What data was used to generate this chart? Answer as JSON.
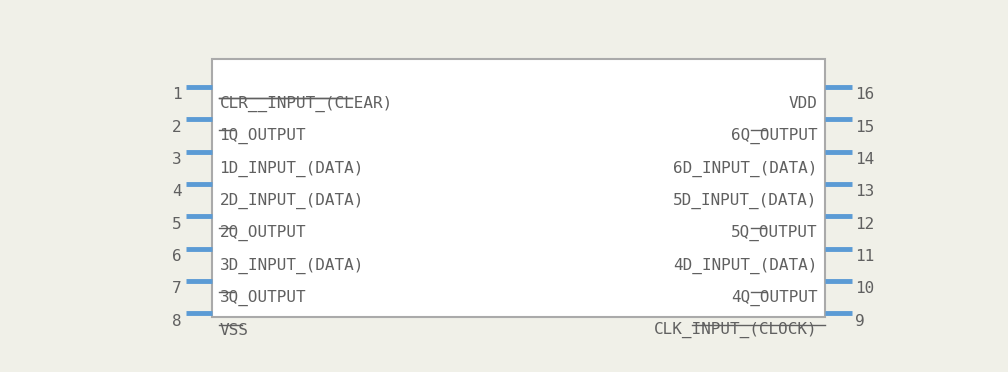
{
  "bg_color": "#f0f0e8",
  "box_edge_color": "#aaaaaa",
  "pin_color": "#5b9bd5",
  "text_color": "#606060",
  "number_color": "#606060",
  "overline_color": "#606060",
  "left_labels": [
    "CLR__INPUT_(CLEAR)",
    "1Q_OUTPUT",
    "1D_INPUT_(DATA)",
    "2D_INPUT_(DATA)",
    "2Q_OUTPUT",
    "3D_INPUT_(DATA)",
    "3Q_OUTPUT",
    "VSS"
  ],
  "right_labels": [
    "VDD",
    "6Q_OUTPUT",
    "6D_INPUT_(DATA)",
    "5D_INPUT_(DATA)",
    "5Q_OUTPUT",
    "4D_INPUT_(DATA)",
    "4Q_OUTPUT",
    "CLK_INPUT_(CLOCK)"
  ],
  "left_nums": [
    1,
    2,
    3,
    4,
    5,
    6,
    7,
    8
  ],
  "right_nums": [
    16,
    15,
    14,
    13,
    12,
    11,
    10,
    9
  ],
  "left_overlines": {
    "0": [
      [
        0,
        18
      ]
    ],
    "1": [
      [
        0,
        2
      ]
    ],
    "4": [
      [
        0,
        2
      ]
    ],
    "6": [
      [
        0,
        2
      ]
    ],
    "7": [
      [
        0,
        3
      ]
    ]
  },
  "right_overlines": {
    "1": [
      [
        0,
        2
      ]
    ],
    "4": [
      [
        0,
        2
      ]
    ],
    "6": [
      [
        0,
        2
      ]
    ],
    "7": [
      [
        0,
        18
      ]
    ]
  }
}
